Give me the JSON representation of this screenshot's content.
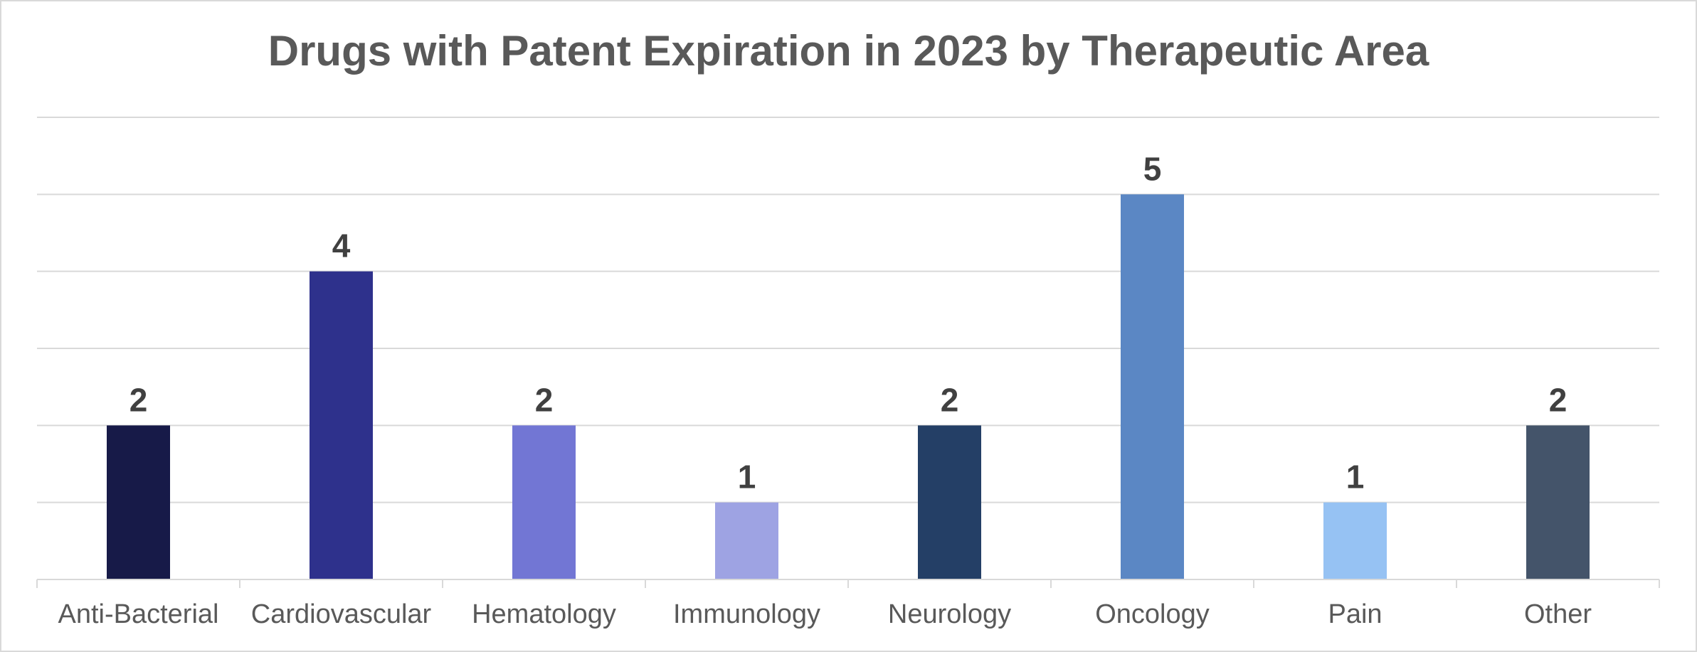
{
  "chart_data": {
    "type": "bar",
    "title": "Drugs with Patent Expiration in 2023 by Therapeutic Area",
    "categories": [
      "Anti-Bacterial",
      "Cardiovascular",
      "Hematology",
      "Immunology",
      "Neurology",
      "Oncology",
      "Pain",
      "Other"
    ],
    "values": [
      2,
      4,
      2,
      1,
      2,
      5,
      1,
      2
    ],
    "colors": [
      "#171a48",
      "#2e318c",
      "#7276d4",
      "#9ea3e3",
      "#243f66",
      "#5b87c4",
      "#96c2f3",
      "#44546a"
    ],
    "xlabel": "",
    "ylabel": "",
    "ylim": [
      0,
      6
    ],
    "grid": true,
    "legend": "none"
  }
}
